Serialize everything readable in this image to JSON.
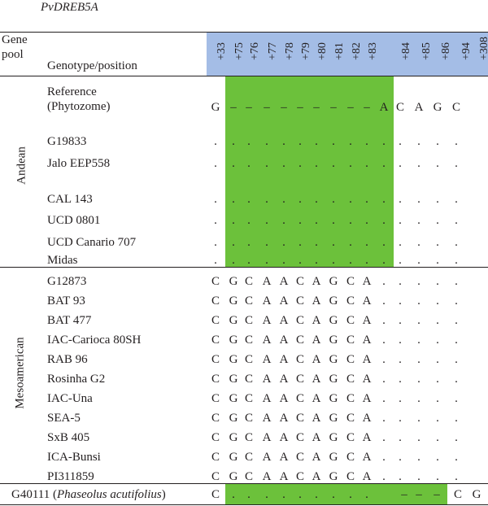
{
  "title": "PvDREB5A",
  "header": {
    "gene_pool": [
      "Gene",
      "pool"
    ],
    "genotype_position": "Genotype/position",
    "positions": [
      "+33",
      "+75",
      "+76",
      "+77",
      "+78",
      "+79",
      "+80",
      "+81",
      "+82",
      "+83",
      "+84",
      "+85",
      "+86",
      "+94",
      "+308"
    ]
  },
  "groups": {
    "andean": "Andean",
    "mesoamerican": "Mesoamerican"
  },
  "rows": [
    {
      "name": [
        "Reference",
        "(Phytozome)"
      ],
      "cells": [
        "G",
        "–",
        "–",
        "–",
        "–",
        "–",
        "–",
        "–",
        "–",
        "–",
        "A",
        "C",
        "A",
        "G",
        "C"
      ]
    },
    {
      "name": [
        "G19833"
      ],
      "cells": [
        ".",
        ".",
        ".",
        ".",
        ".",
        ".",
        ".",
        ".",
        ".",
        ".",
        ".",
        ".",
        ".",
        ".",
        "."
      ]
    },
    {
      "name": [
        "Jalo EEP558"
      ],
      "cells": [
        ".",
        ".",
        ".",
        ".",
        ".",
        ".",
        ".",
        ".",
        ".",
        ".",
        ".",
        ".",
        ".",
        ".",
        "."
      ]
    },
    {
      "name": [
        "CAL 143"
      ],
      "cells": [
        ".",
        ".",
        ".",
        ".",
        ".",
        ".",
        ".",
        ".",
        ".",
        ".",
        ".",
        ".",
        ".",
        ".",
        "."
      ]
    },
    {
      "name": [
        "UCD 0801"
      ],
      "cells": [
        ".",
        ".",
        ".",
        ".",
        ".",
        ".",
        ".",
        ".",
        ".",
        ".",
        ".",
        ".",
        ".",
        ".",
        "."
      ]
    },
    {
      "name": [
        "UCD Canario 707"
      ],
      "cells": [
        ".",
        ".",
        ".",
        ".",
        ".",
        ".",
        ".",
        ".",
        ".",
        ".",
        ".",
        ".",
        ".",
        ".",
        "."
      ]
    },
    {
      "name": [
        "Midas"
      ],
      "cells": [
        ".",
        ".",
        ".",
        ".",
        ".",
        ".",
        ".",
        ".",
        ".",
        ".",
        ".",
        ".",
        ".",
        ".",
        "."
      ]
    },
    {
      "name": [
        "G12873"
      ],
      "cells": [
        "C",
        "G",
        "C",
        "A",
        "A",
        "C",
        "A",
        "G",
        "C",
        "A",
        ".",
        ".",
        ".",
        ".",
        "."
      ]
    },
    {
      "name": [
        "BAT 93"
      ],
      "cells": [
        "C",
        "G",
        "C",
        "A",
        "A",
        "C",
        "A",
        "G",
        "C",
        "A",
        ".",
        ".",
        ".",
        ".",
        "."
      ]
    },
    {
      "name": [
        "BAT 477"
      ],
      "cells": [
        "C",
        "G",
        "C",
        "A",
        "A",
        "C",
        "A",
        "G",
        "C",
        "A",
        ".",
        ".",
        ".",
        ".",
        "."
      ]
    },
    {
      "name": [
        "IAC-Carioca 80SH"
      ],
      "cells": [
        "C",
        "G",
        "C",
        "A",
        "A",
        "C",
        "A",
        "G",
        "C",
        "A",
        ".",
        ".",
        ".",
        ".",
        "."
      ]
    },
    {
      "name": [
        "RAB 96"
      ],
      "cells": [
        "C",
        "G",
        "C",
        "A",
        "A",
        "C",
        "A",
        "G",
        "C",
        "A",
        ".",
        ".",
        ".",
        ".",
        "."
      ]
    },
    {
      "name": [
        "Rosinha G2"
      ],
      "cells": [
        "C",
        "G",
        "C",
        "A",
        "A",
        "C",
        "A",
        "G",
        "C",
        "A",
        ".",
        ".",
        ".",
        ".",
        "."
      ]
    },
    {
      "name": [
        "IAC-Una"
      ],
      "cells": [
        "C",
        "G",
        "C",
        "A",
        "A",
        "C",
        "A",
        "G",
        "C",
        "A",
        ".",
        ".",
        ".",
        ".",
        "."
      ]
    },
    {
      "name": [
        "SEA-5"
      ],
      "cells": [
        "C",
        "G",
        "C",
        "A",
        "A",
        "C",
        "A",
        "G",
        "C",
        "A",
        ".",
        ".",
        ".",
        ".",
        "."
      ]
    },
    {
      "name": [
        "SxB 405"
      ],
      "cells": [
        "C",
        "G",
        "C",
        "A",
        "A",
        "C",
        "A",
        "G",
        "C",
        "A",
        ".",
        ".",
        ".",
        ".",
        "."
      ]
    },
    {
      "name": [
        "ICA-Bunsi"
      ],
      "cells": [
        "C",
        "G",
        "C",
        "A",
        "A",
        "C",
        "A",
        "G",
        "C",
        "A",
        ".",
        ".",
        ".",
        ".",
        "."
      ]
    },
    {
      "name": [
        "PI311859"
      ],
      "cells": [
        "C",
        "G",
        "C",
        "A",
        "A",
        "C",
        "A",
        "G",
        "C",
        "A",
        ".",
        ".",
        ".",
        ".",
        "."
      ]
    }
  ],
  "last_row": {
    "name_prefix": "G40111 (",
    "name_species": "Phaseolus acutifolius",
    "name_suffix": ")",
    "cells": [
      "C",
      ".",
      ".",
      ".",
      ".",
      ".",
      ".",
      ".",
      ".",
      ".",
      "–",
      "–",
      "–",
      "C",
      "G"
    ]
  },
  "colors": {
    "header_bg": "#a4bde6",
    "highlight_green": "#6cc13b",
    "text": "#231f20"
  }
}
